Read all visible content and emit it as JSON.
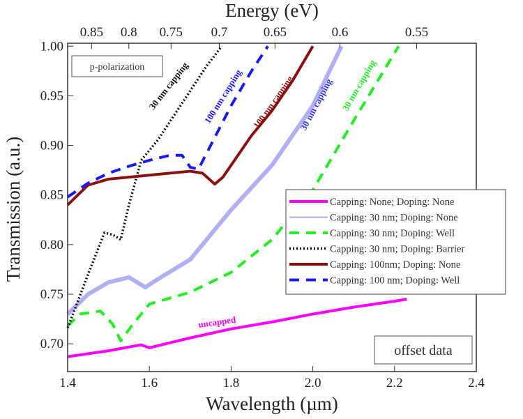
{
  "chart_data": {
    "type": "line",
    "xlabel": "Wavelength (µm)",
    "ylabel": "Transmission (a.u.)",
    "top_xlabel": "Energy (eV)",
    "xlim": [
      1.4,
      2.4
    ],
    "ylim": [
      0.672,
      1.003
    ],
    "xticks": [
      "1.4",
      "1.6",
      "1.8",
      "2.0",
      "2.2",
      "2.4"
    ],
    "yticks": [
      "0.70",
      "0.75",
      "0.80",
      "0.85",
      "0.90",
      "0.95",
      "1.00"
    ],
    "top_ticks": [
      "0.85",
      "0.8",
      "0.75",
      "0.7",
      "0.65",
      "0.6",
      "0.55"
    ],
    "grid": false,
    "legend_placement": "right",
    "series": [
      {
        "name": "Capping: None; Doping: None",
        "color": "#ff00ff",
        "style": "solid-thick",
        "x": [
          1.4,
          1.5,
          1.58,
          1.6,
          1.7,
          1.8,
          1.9,
          2.0,
          2.1,
          2.2,
          2.23
        ],
        "y": [
          0.687,
          0.693,
          0.699,
          0.696,
          0.706,
          0.715,
          0.722,
          0.73,
          0.737,
          0.743,
          0.745
        ]
      },
      {
        "name": "Capping: 30 nm; Doping: None",
        "color": "#8f8fee",
        "style": "solid-wide",
        "x": [
          1.4,
          1.45,
          1.5,
          1.55,
          1.59,
          1.62,
          1.7,
          1.75,
          1.8,
          1.9,
          2.0,
          2.07
        ],
        "y": [
          0.73,
          0.75,
          0.762,
          0.767,
          0.757,
          0.765,
          0.785,
          0.81,
          0.835,
          0.88,
          0.94,
          1.0
        ]
      },
      {
        "name": "Capping: 30 nm; Doping: Well",
        "color": "#22ee22",
        "style": "dash",
        "x": [
          1.4,
          1.43,
          1.48,
          1.51,
          1.53,
          1.56,
          1.6,
          1.7,
          1.8,
          1.9,
          2.0,
          2.1,
          2.21
        ],
        "y": [
          0.718,
          0.73,
          0.733,
          0.72,
          0.703,
          0.72,
          0.74,
          0.752,
          0.772,
          0.805,
          0.855,
          0.925,
          1.0
        ]
      },
      {
        "name": "Capping: 30 nm; Doping: Barrier",
        "color": "#111111",
        "style": "dot",
        "x": [
          1.4,
          1.45,
          1.49,
          1.51,
          1.53,
          1.55,
          1.58,
          1.62,
          1.66,
          1.7,
          1.74,
          1.777
        ],
        "y": [
          0.716,
          0.77,
          0.812,
          0.81,
          0.805,
          0.84,
          0.885,
          0.905,
          0.93,
          0.955,
          0.98,
          1.0
        ]
      },
      {
        "name": "Capping: 100nm; Doping: None",
        "color": "#8b1010",
        "style": "solid-thick",
        "x": [
          1.4,
          1.45,
          1.5,
          1.6,
          1.7,
          1.73,
          1.76,
          1.78,
          1.85,
          1.9,
          1.95,
          2.0
        ],
        "y": [
          0.84,
          0.86,
          0.866,
          0.87,
          0.874,
          0.872,
          0.861,
          0.868,
          0.91,
          0.935,
          0.965,
          1.0
        ]
      },
      {
        "name": "Capping: 100 nm; Doping: Well",
        "color": "#1a1aff",
        "style": "dash",
        "x": [
          1.4,
          1.45,
          1.5,
          1.55,
          1.6,
          1.65,
          1.68,
          1.7,
          1.72,
          1.75,
          1.8,
          1.85,
          1.89
        ],
        "y": [
          0.848,
          0.862,
          0.872,
          0.879,
          0.885,
          0.89,
          0.89,
          0.878,
          0.876,
          0.9,
          0.94,
          0.975,
          1.0
        ]
      }
    ],
    "annotations": [
      {
        "text": "30 nm capping",
        "color": "#111111"
      },
      {
        "text": "100 nm capping",
        "color": "#1a1aff"
      },
      {
        "text": "100 nm capping",
        "color": "#8b1010"
      },
      {
        "text": "30 nm capping",
        "color": "#3030ee"
      },
      {
        "text": "30 nm capping",
        "color": "#22ee22"
      },
      {
        "text": "uncapped",
        "color": "#ff00ff"
      }
    ],
    "boxes": {
      "polarization": "p-polarization",
      "offset": "offset data"
    }
  }
}
